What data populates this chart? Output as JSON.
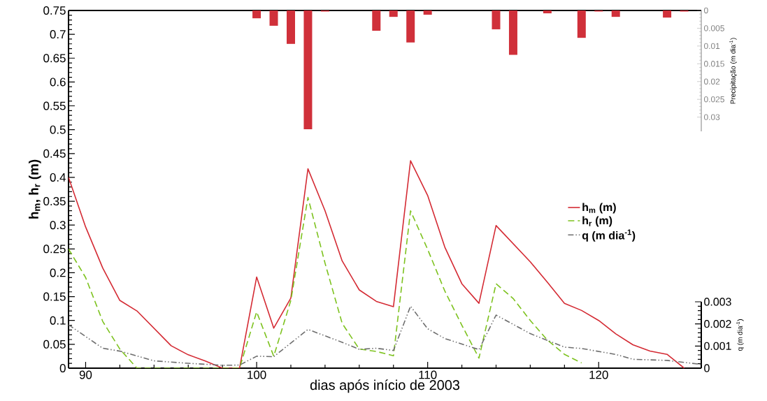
{
  "chart_data": {
    "type": "line",
    "xlabel": "dias após início de 2003",
    "ylabel": "h$_{m}$, h$_{r}$ (m)",
    "y2label": "Precipitação (m dia$^{-1}$)",
    "y3label": "q (m dia$^{-1}$)",
    "xlim": [
      89,
      126
    ],
    "xticks": [
      90,
      100,
      110,
      120
    ],
    "ylim": [
      0,
      0.75
    ],
    "yticks": [
      0,
      0.05,
      0.1,
      0.15,
      0.2,
      0.25,
      0.3,
      0.35,
      0.4,
      0.45,
      0.5,
      0.55,
      0.6,
      0.65,
      0.7,
      0.75
    ],
    "y2lim": [
      0.034,
      0
    ],
    "y2ticks": [
      0,
      0.005,
      0.01,
      0.015,
      0.02,
      0.025,
      0.03
    ],
    "y3lim": [
      0,
      0.003
    ],
    "y3ticks": [
      0,
      0.001,
      0.002,
      0.003
    ],
    "legend": "right",
    "series": [
      {
        "name": "h$_{m}$ (m)",
        "axis": "y",
        "color": "#d42a33",
        "line_style": "solid",
        "x": [
          89,
          90,
          91,
          92,
          93,
          95,
          96,
          97,
          98,
          99,
          100,
          101,
          102,
          103,
          104,
          105,
          106,
          107,
          108,
          109,
          110,
          111,
          112,
          113,
          114,
          116,
          117,
          118,
          119,
          120,
          121,
          122,
          123,
          124,
          125
        ],
        "values": [
          0.4,
          0.296,
          0.21,
          0.142,
          0.12,
          0.047,
          0.028,
          0.015,
          0,
          0,
          0.191,
          0.084,
          0.147,
          0.418,
          0.33,
          0.225,
          0.164,
          0.14,
          0.129,
          0.435,
          0.362,
          0.254,
          0.177,
          0.136,
          0.299,
          0.223,
          0.18,
          0.136,
          0.121,
          0.1,
          0.072,
          0.049,
          0.036,
          0.029,
          0
        ]
      },
      {
        "name": "h$_{r}$ (m)",
        "axis": "y",
        "color": "#7dc21e",
        "line_style": "dashed",
        "x": [
          89,
          90,
          91,
          92,
          93,
          99,
          100,
          101,
          102,
          103,
          104,
          105,
          106,
          107,
          108,
          109,
          110,
          111,
          112,
          113,
          114,
          115,
          116,
          117,
          118,
          119
        ],
        "values": [
          0.25,
          0.19,
          0.098,
          0.04,
          0,
          0,
          0.118,
          0.025,
          0.142,
          0.358,
          0.22,
          0.094,
          0.04,
          0.035,
          0.026,
          0.33,
          0.249,
          0.162,
          0.09,
          0.021,
          0.177,
          0.146,
          0.1,
          0.059,
          0.029,
          0.011
        ]
      },
      {
        "name": "q (m dia$^{-1}$)",
        "axis": "y3",
        "color": "#6e6e6e",
        "line_style": "dashdotdot",
        "x": [
          89,
          91,
          92,
          94,
          96,
          98,
          99,
          100,
          101,
          103,
          105,
          106,
          107,
          108,
          109,
          110,
          111,
          113,
          114,
          116,
          118,
          119,
          121,
          122,
          124,
          125,
          126
        ],
        "values": [
          0.00196,
          0.0009,
          0.00077,
          0.00033,
          0.00022,
          0.00013,
          0.00014,
          0.00054,
          0.00052,
          0.00175,
          0.00117,
          0.00085,
          0.0009,
          0.0008,
          0.0028,
          0.00178,
          0.00134,
          0.00084,
          0.0024,
          0.00156,
          0.00095,
          0.00089,
          0.00062,
          0.0004,
          0.00035,
          0.00026,
          0.00017
        ]
      },
      {
        "type": "bar",
        "axis": "y2",
        "color": "#d0303a",
        "x": [
          100,
          101,
          102,
          103,
          104,
          107,
          108,
          109,
          110,
          114,
          115,
          117,
          119,
          120,
          121,
          124,
          125
        ],
        "values": [
          0.0022,
          0.0043,
          0.0094,
          0.0334,
          0.0003,
          0.0057,
          0.0018,
          0.009,
          0.0012,
          0.0053,
          0.0125,
          0.0008,
          0.0077,
          0.0003,
          0.0018,
          0.002,
          0.0003
        ]
      }
    ]
  }
}
